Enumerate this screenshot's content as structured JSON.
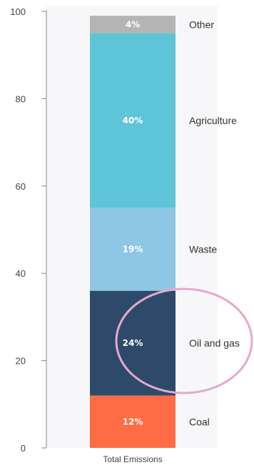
{
  "chart_data": {
    "type": "bar",
    "stacked": true,
    "categories": [
      "Total Emissions"
    ],
    "series": [
      {
        "name": "Coal",
        "label": "12%",
        "value": 12,
        "color": "#ff6b45"
      },
      {
        "name": "Oil and gas",
        "label": "24%",
        "value": 24,
        "color": "#2e4a6b"
      },
      {
        "name": "Waste",
        "label": "19%",
        "value": 19,
        "color": "#8ec7e6"
      },
      {
        "name": "Agriculture",
        "label": "40%",
        "value": 40,
        "color": "#5ec4d7"
      },
      {
        "name": "Other",
        "label": "4%",
        "value": 4,
        "color": "#b4b4b4"
      }
    ],
    "yticks": [
      "0",
      "20",
      "40",
      "60",
      "80",
      "100"
    ],
    "ylim": [
      0,
      100
    ],
    "grid": false,
    "legend": "right of bar, inline with segments",
    "annotation": {
      "type": "ellipse",
      "target": "Oil and gas",
      "color": "#e8a8cc"
    }
  }
}
